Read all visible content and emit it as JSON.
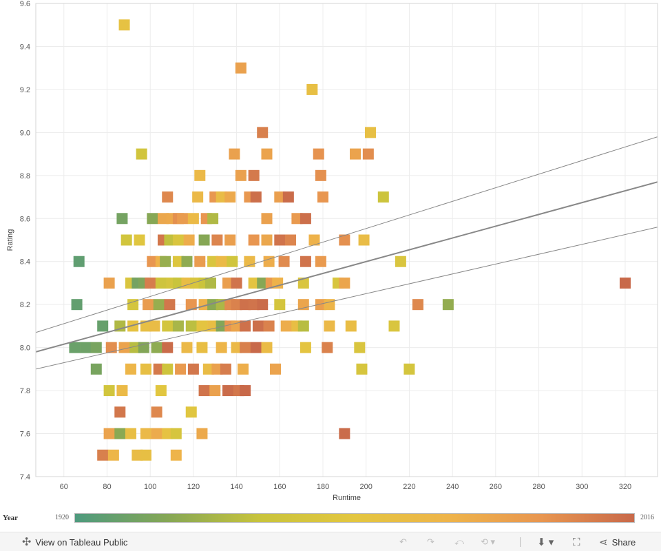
{
  "chart_data": {
    "type": "scatter",
    "title": "",
    "xlabel": "Runtime",
    "ylabel": "Rating",
    "xlim": [
      47,
      335
    ],
    "ylim": [
      7.4,
      9.6
    ],
    "xticks": [
      60,
      80,
      100,
      120,
      140,
      160,
      180,
      200,
      220,
      240,
      260,
      280,
      300,
      320
    ],
    "yticks": [
      7.4,
      7.6,
      7.8,
      8.0,
      8.2,
      8.4,
      8.6,
      8.8,
      9.0,
      9.2,
      9.4,
      9.6
    ],
    "grid": true,
    "color_by": "Year",
    "points": [
      [
        88,
        9.5,
        1972
      ],
      [
        142,
        9.3,
        1994
      ],
      [
        175,
        9.2,
        1974
      ],
      [
        152,
        9.0,
        2008
      ],
      [
        202,
        9.0,
        1974
      ],
      [
        96,
        8.9,
        1957
      ],
      [
        139,
        8.9,
        1994
      ],
      [
        154,
        8.9,
        1993
      ],
      [
        178,
        8.9,
        2001
      ],
      [
        195,
        8.9,
        1993
      ],
      [
        201,
        8.9,
        2003
      ],
      [
        123,
        8.8,
        1980
      ],
      [
        142,
        8.8,
        1994
      ],
      [
        148,
        8.8,
        2010
      ],
      [
        179,
        8.8,
        2002
      ],
      [
        108,
        8.7,
        2005
      ],
      [
        122,
        8.7,
        1980
      ],
      [
        130,
        8.7,
        1999
      ],
      [
        133,
        8.7,
        1977
      ],
      [
        137,
        8.7,
        1990
      ],
      [
        146,
        8.7,
        1999
      ],
      [
        149,
        8.7,
        2014
      ],
      [
        160,
        8.7,
        1995
      ],
      [
        164,
        8.7,
        2015
      ],
      [
        180,
        8.7,
        2000
      ],
      [
        208,
        8.7,
        1954
      ],
      [
        87,
        8.6,
        1931
      ],
      [
        101,
        8.6,
        1936
      ],
      [
        106,
        8.6,
        1991
      ],
      [
        110,
        8.6,
        1990
      ],
      [
        113,
        8.6,
        2002
      ],
      [
        115,
        8.6,
        1997
      ],
      [
        120,
        8.6,
        1979
      ],
      [
        126,
        8.6,
        2000
      ],
      [
        129,
        8.6,
        1946
      ],
      [
        154,
        8.6,
        1994
      ],
      [
        168,
        8.6,
        1998
      ],
      [
        172,
        8.6,
        2014
      ],
      [
        89,
        8.5,
        1957
      ],
      [
        95,
        8.5,
        1966
      ],
      [
        106,
        8.5,
        2011
      ],
      [
        109,
        8.5,
        1950
      ],
      [
        113,
        8.5,
        1962
      ],
      [
        118,
        8.5,
        1988
      ],
      [
        125,
        8.5,
        1936
      ],
      [
        131,
        8.5,
        2006
      ],
      [
        137,
        8.5,
        1995
      ],
      [
        148,
        8.5,
        2000
      ],
      [
        154,
        8.5,
        1991
      ],
      [
        160,
        8.5,
        2012
      ],
      [
        165,
        8.5,
        2006
      ],
      [
        176,
        8.5,
        1985
      ],
      [
        190,
        8.5,
        2002
      ],
      [
        199,
        8.5,
        1977
      ],
      [
        67,
        8.4,
        1925
      ],
      [
        101,
        8.4,
        2000
      ],
      [
        105,
        8.4,
        1985
      ],
      [
        107,
        8.4,
        1940
      ],
      [
        113,
        8.4,
        1964
      ],
      [
        117,
        8.4,
        1938
      ],
      [
        123,
        8.4,
        1997
      ],
      [
        129,
        8.4,
        1962
      ],
      [
        133,
        8.4,
        1979
      ],
      [
        138,
        8.4,
        1956
      ],
      [
        146,
        8.4,
        1980
      ],
      [
        155,
        8.4,
        1988
      ],
      [
        162,
        8.4,
        2004
      ],
      [
        172,
        8.4,
        2012
      ],
      [
        179,
        8.4,
        1998
      ],
      [
        216,
        8.4,
        1962
      ],
      [
        81,
        8.3,
        1994
      ],
      [
        91,
        8.3,
        1962
      ],
      [
        94,
        8.3,
        1931
      ],
      [
        97,
        8.3,
        1934
      ],
      [
        100,
        8.3,
        2009
      ],
      [
        105,
        8.3,
        1955
      ],
      [
        110,
        8.3,
        1959
      ],
      [
        113,
        8.3,
        1952
      ],
      [
        117,
        8.3,
        1976
      ],
      [
        121,
        8.3,
        1961
      ],
      [
        125,
        8.3,
        1953
      ],
      [
        128,
        8.3,
        1946
      ],
      [
        136,
        8.3,
        1995
      ],
      [
        140,
        8.3,
        2012
      ],
      [
        148,
        8.3,
        1970
      ],
      [
        152,
        8.3,
        1936
      ],
      [
        156,
        8.3,
        1998
      ],
      [
        159,
        8.3,
        1985
      ],
      [
        171,
        8.3,
        1962
      ],
      [
        187,
        8.3,
        1961
      ],
      [
        190,
        8.3,
        1992
      ],
      [
        320,
        8.3,
        2016
      ],
      [
        66,
        8.2,
        1926
      ],
      [
        92,
        8.2,
        1959
      ],
      [
        99,
        8.2,
        1997
      ],
      [
        104,
        8.2,
        1940
      ],
      [
        109,
        8.2,
        2011
      ],
      [
        119,
        8.2,
        2000
      ],
      [
        125,
        8.2,
        1985
      ],
      [
        129,
        8.2,
        1937
      ],
      [
        133,
        8.2,
        1945
      ],
      [
        137,
        8.2,
        2004
      ],
      [
        140,
        8.2,
        2007
      ],
      [
        144,
        8.2,
        2013
      ],
      [
        148,
        8.2,
        2012
      ],
      [
        152,
        8.2,
        2015
      ],
      [
        160,
        8.2,
        1959
      ],
      [
        171,
        8.2,
        1992
      ],
      [
        179,
        8.2,
        1995
      ],
      [
        183,
        8.2,
        1983
      ],
      [
        224,
        8.2,
        2005
      ],
      [
        238,
        8.2,
        1939
      ],
      [
        78,
        8.1,
        1927
      ],
      [
        86,
        8.1,
        1946
      ],
      [
        92,
        8.1,
        1972
      ],
      [
        98,
        8.1,
        1974
      ],
      [
        102,
        8.1,
        1977
      ],
      [
        108,
        8.1,
        1958
      ],
      [
        113,
        8.1,
        1944
      ],
      [
        119,
        8.1,
        1949
      ],
      [
        124,
        8.1,
        1970
      ],
      [
        129,
        8.1,
        1975
      ],
      [
        133,
        8.1,
        1935
      ],
      [
        137,
        8.1,
        2000
      ],
      [
        140,
        8.1,
        1992
      ],
      [
        144,
        8.1,
        2013
      ],
      [
        150,
        8.1,
        2014
      ],
      [
        155,
        8.1,
        2007
      ],
      [
        163,
        8.1,
        1988
      ],
      [
        168,
        8.1,
        1975
      ],
      [
        171,
        8.1,
        1948
      ],
      [
        183,
        8.1,
        1980
      ],
      [
        193,
        8.1,
        1976
      ],
      [
        213,
        8.1,
        1962
      ],
      [
        65,
        8.0,
        1928
      ],
      [
        70,
        8.0,
        1929
      ],
      [
        75,
        8.0,
        1932
      ],
      [
        82,
        8.0,
        2003
      ],
      [
        88,
        8.0,
        1993
      ],
      [
        93,
        8.0,
        1948
      ],
      [
        97,
        8.0,
        1935
      ],
      [
        103,
        8.0,
        1938
      ],
      [
        108,
        8.0,
        2015
      ],
      [
        117,
        8.0,
        1980
      ],
      [
        124,
        8.0,
        1975
      ],
      [
        133,
        8.0,
        1983
      ],
      [
        140,
        8.0,
        1980
      ],
      [
        144,
        8.0,
        2008
      ],
      [
        149,
        8.0,
        2016
      ],
      [
        154,
        8.0,
        1978
      ],
      [
        172,
        8.0,
        1970
      ],
      [
        182,
        8.0,
        2007
      ],
      [
        197,
        8.0,
        1962
      ],
      [
        75,
        7.9,
        1932
      ],
      [
        91,
        7.9,
        1982
      ],
      [
        98,
        7.9,
        1974
      ],
      [
        104,
        7.9,
        2010
      ],
      [
        108,
        7.9,
        1955
      ],
      [
        114,
        7.9,
        1998
      ],
      [
        120,
        7.9,
        2011
      ],
      [
        127,
        7.9,
        1977
      ],
      [
        131,
        7.9,
        1994
      ],
      [
        135,
        7.9,
        2009
      ],
      [
        143,
        7.9,
        1987
      ],
      [
        158,
        7.9,
        1993
      ],
      [
        198,
        7.9,
        1960
      ],
      [
        220,
        7.9,
        1959
      ],
      [
        81,
        7.8,
        1957
      ],
      [
        87,
        7.8,
        1979
      ],
      [
        105,
        7.8,
        1967
      ],
      [
        125,
        7.8,
        2012
      ],
      [
        130,
        7.8,
        1994
      ],
      [
        136,
        7.8,
        2015
      ],
      [
        141,
        7.8,
        2011
      ],
      [
        144,
        7.8,
        2016
      ],
      [
        86,
        7.7,
        2011
      ],
      [
        103,
        7.7,
        2005
      ],
      [
        119,
        7.7,
        1966
      ],
      [
        81,
        7.6,
        1993
      ],
      [
        86,
        7.6,
        1937
      ],
      [
        91,
        7.6,
        1975
      ],
      [
        98,
        7.6,
        1980
      ],
      [
        103,
        7.6,
        1989
      ],
      [
        108,
        7.6,
        1972
      ],
      [
        112,
        7.6,
        1960
      ],
      [
        124,
        7.6,
        1990
      ],
      [
        190,
        7.6,
        2015
      ],
      [
        78,
        7.5,
        2008
      ],
      [
        83,
        7.5,
        1982
      ],
      [
        94,
        7.5,
        1977
      ],
      [
        98,
        7.5,
        1974
      ],
      [
        112,
        7.5,
        1984
      ]
    ],
    "trend": {
      "mid": [
        [
          47,
          7.98
        ],
        [
          335,
          8.77
        ]
      ],
      "upper": [
        [
          47,
          8.07
        ],
        [
          335,
          8.98
        ]
      ],
      "lower": [
        [
          47,
          7.9
        ],
        [
          335,
          8.56
        ]
      ]
    },
    "legend": {
      "title": "Year",
      "min": 1920,
      "max": 2016,
      "colors": [
        "#4e9a7e",
        "#86a755",
        "#c9c43c",
        "#e3c640",
        "#eeb44a",
        "#e89650",
        "#c8694a"
      ]
    }
  },
  "toolbar": {
    "view_label": "View on Tableau Public",
    "share_label": "Share",
    "icons": [
      "tableau-icon",
      "undo-icon",
      "redo-icon",
      "revert-icon",
      "refresh-icon",
      "download-icon",
      "fullscreen-icon",
      "share-icon"
    ]
  }
}
